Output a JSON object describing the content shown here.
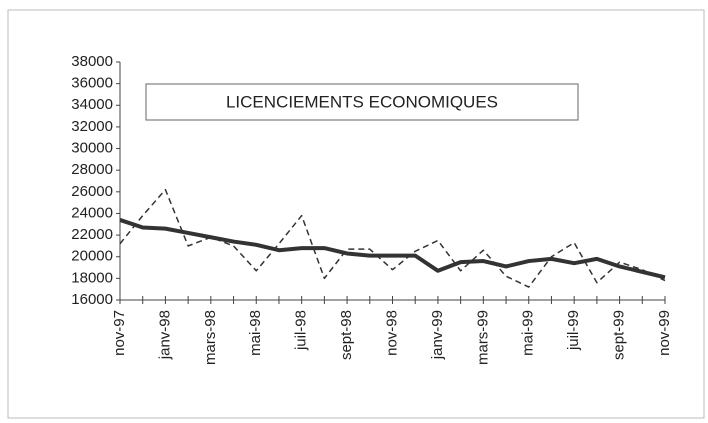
{
  "chart_data": {
    "type": "line",
    "title": "LICENCIEMENTS ECONOMIQUES",
    "categories": [
      "nov-97",
      null,
      "janv-98",
      null,
      "mars-98",
      null,
      "mai-98",
      null,
      "juil-98",
      null,
      "sept-98",
      null,
      "nov-98",
      null,
      "janv-99",
      null,
      "mars-99",
      null,
      "mai-99",
      null,
      "juil-99",
      null,
      "sept-99",
      null,
      "nov-99"
    ],
    "series": [
      {
        "color": "#333333",
        "dashed": true,
        "values": [
          21200,
          23800,
          26200,
          21000,
          21800,
          21000,
          18700,
          21200,
          23800,
          18000,
          20700,
          20700,
          18800,
          20500,
          21500,
          18700,
          20600,
          18200,
          17200,
          20000,
          21300,
          17600,
          19500,
          18800,
          17800
        ]
      },
      {
        "color": "#333333",
        "dashed": false,
        "values": [
          23400,
          22700,
          22600,
          22200,
          21800,
          21400,
          21100,
          20600,
          20800,
          20800,
          20300,
          20100,
          20100,
          20100,
          18700,
          19500,
          19600,
          19100,
          19600,
          19800,
          19400,
          19800,
          19100,
          18600,
          18100
        ]
      }
    ],
    "ylim": [
      16000,
      38000
    ],
    "yticks": [
      16000,
      18000,
      20000,
      22000,
      24000,
      26000,
      28000,
      30000,
      32000,
      34000,
      36000,
      38000
    ],
    "grid": false
  }
}
